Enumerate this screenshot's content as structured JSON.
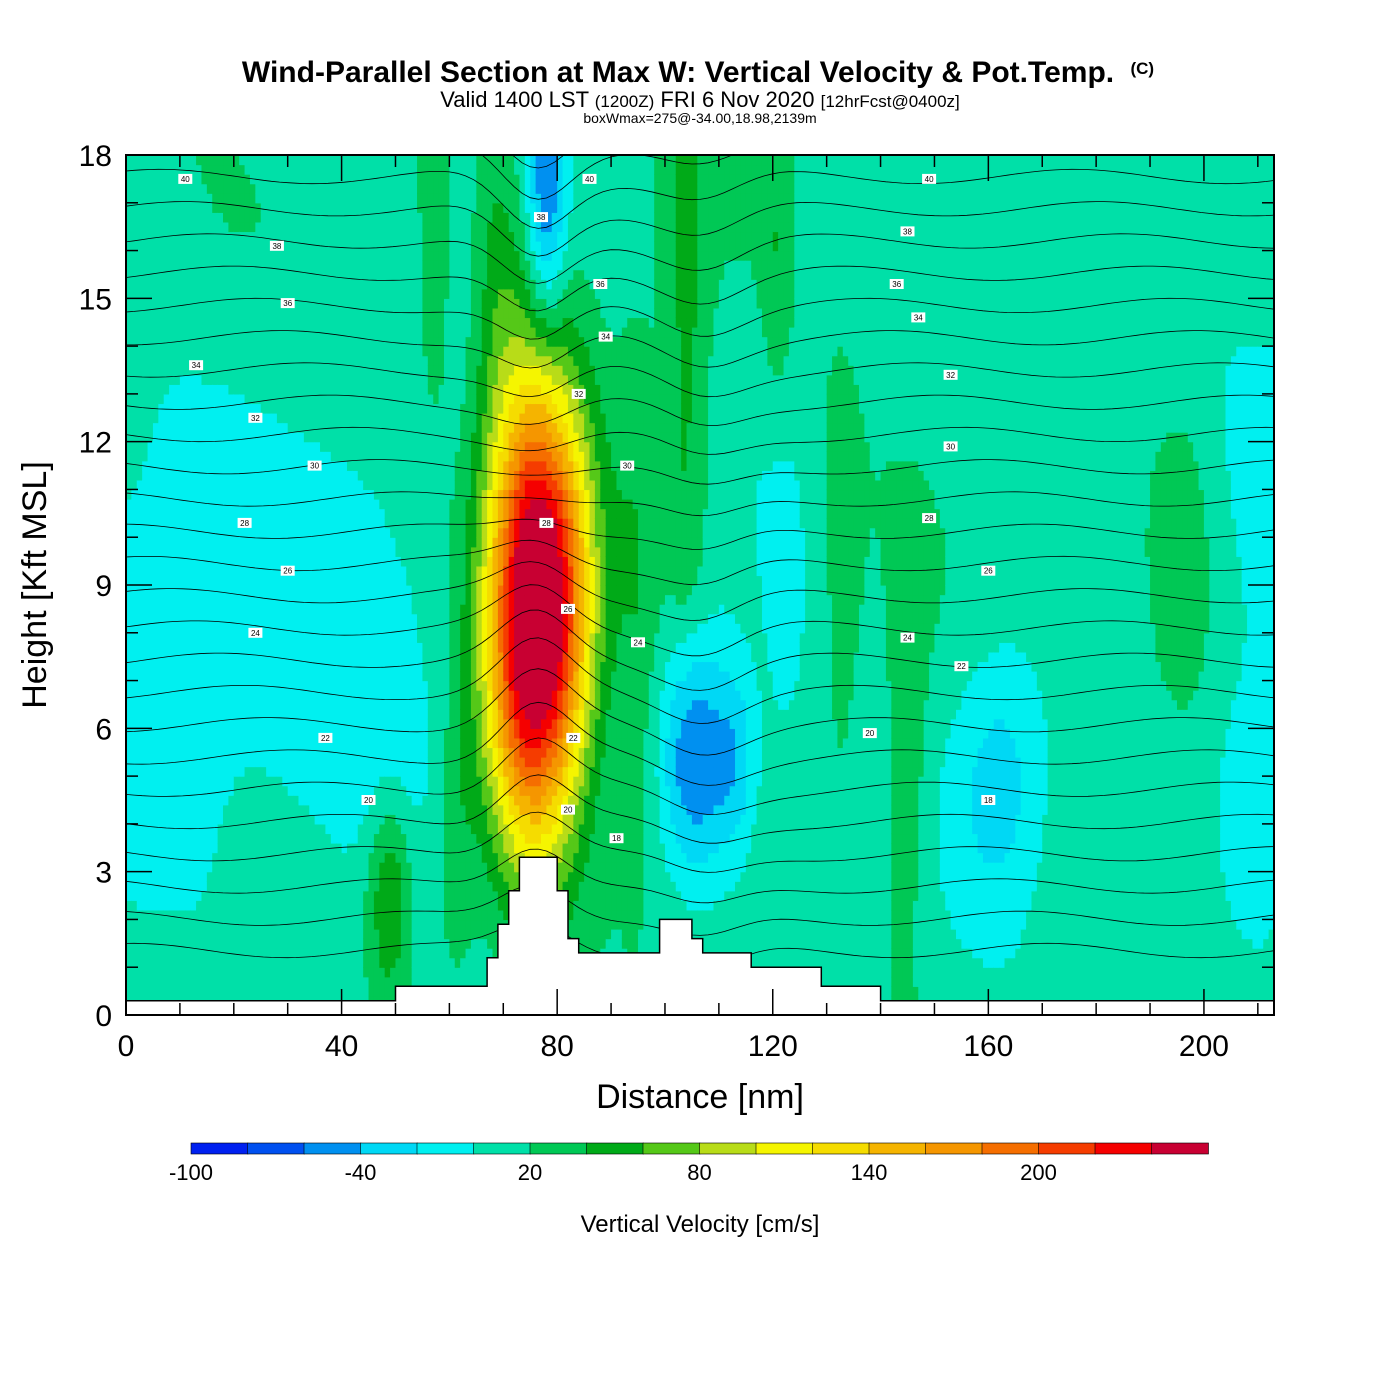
{
  "header": {
    "title": "Wind-Parallel Section at Max W: Vertical Velocity & Pot.Temp.",
    "copyright": "(C)",
    "valid_prefix": "Valid 1400 LST",
    "valid_utc": "(1200Z)",
    "valid_date": "FRI 6 Nov 2020",
    "forecast": "[12hrFcst@0400z]",
    "box_wmax": "boxWmax=275@-34.00,18.98,2139m"
  },
  "chart_data": {
    "type": "heatmap",
    "title": "Wind-Parallel Section at Max W: Vertical Velocity & Pot.Temp.",
    "xlabel": "Distance [nm]",
    "ylabel": "Height [Kft MSL]",
    "xlim": [
      0,
      213
    ],
    "ylim": [
      0,
      18
    ],
    "xticks": [
      0,
      40,
      80,
      120,
      160,
      200
    ],
    "xtick_labels": [
      "0",
      "40",
      "80",
      "120",
      "160",
      "200"
    ],
    "yticks": [
      0,
      3,
      6,
      9,
      12,
      15,
      18
    ],
    "ytick_labels": [
      "0",
      "3",
      "6",
      "9",
      "12",
      "15",
      "18"
    ],
    "colorbar": {
      "title": "Vertical Velocity [cm/s]",
      "levels": [
        -100,
        -80,
        -60,
        -40,
        -20,
        0,
        20,
        40,
        60,
        80,
        100,
        120,
        140,
        160,
        180,
        200,
        220,
        240
      ],
      "colors": [
        "#0020f0",
        "#0050f0",
        "#0090f0",
        "#00d8f5",
        "#00f0f0",
        "#00e0a8",
        "#00c855",
        "#00aa18",
        "#55c818",
        "#b8dc18",
        "#f5f500",
        "#f5dc00",
        "#f5b400",
        "#f59600",
        "#f56e00",
        "#f53c00",
        "#f50000",
        "#c80032"
      ],
      "tick_values": [
        -100,
        -40,
        20,
        80,
        140,
        200
      ],
      "tick_labels": [
        "-100",
        "-40",
        "20",
        "80",
        "140",
        "200"
      ]
    },
    "terrain": [
      [
        0,
        0.3
      ],
      [
        50,
        0.3
      ],
      [
        50,
        0.6
      ],
      [
        67,
        0.6
      ],
      [
        67,
        1.2
      ],
      [
        69,
        1.2
      ],
      [
        69,
        1.9
      ],
      [
        71,
        1.9
      ],
      [
        71,
        2.6
      ],
      [
        73,
        2.6
      ],
      [
        73,
        3.3
      ],
      [
        80,
        3.3
      ],
      [
        80,
        2.6
      ],
      [
        82,
        2.6
      ],
      [
        82,
        1.6
      ],
      [
        84,
        1.6
      ],
      [
        84,
        1.3
      ],
      [
        99,
        1.3
      ],
      [
        99,
        2.0
      ],
      [
        105,
        2.0
      ],
      [
        105,
        1.6
      ],
      [
        107,
        1.6
      ],
      [
        107,
        1.3
      ],
      [
        116,
        1.3
      ],
      [
        116,
        1.0
      ],
      [
        129,
        1.0
      ],
      [
        129,
        0.6
      ],
      [
        140,
        0.6
      ],
      [
        140,
        0.3
      ],
      [
        213,
        0.3
      ]
    ],
    "updrafts": [
      {
        "x": 75,
        "z": 8.0,
        "sx": 6,
        "sz": 3.3,
        "w": 250
      },
      {
        "x": 82,
        "z": 9.0,
        "sx": 5,
        "sz": 2.8,
        "w": 80
      },
      {
        "x": 76,
        "z": 12.0,
        "sx": 4,
        "sz": 2.5,
        "w": 30
      },
      {
        "x": 69,
        "z": 15.5,
        "sx": 3,
        "sz": 3.0,
        "w": 30
      },
      {
        "x": 49,
        "z": 2.5,
        "sx": 3,
        "sz": 1.5,
        "w": 55
      },
      {
        "x": 61,
        "z": 3.5,
        "sx": 3,
        "sz": 2.0,
        "w": 30
      },
      {
        "x": 104,
        "z": 13.0,
        "sx": 3,
        "sz": 6.0,
        "w": 35
      },
      {
        "x": 95,
        "z": 9.0,
        "sx": 3,
        "sz": 4.0,
        "w": 25
      },
      {
        "x": 145,
        "z": 5.0,
        "sx": 3,
        "sz": 3.0,
        "w": 25
      },
      {
        "x": 196,
        "z": 10.0,
        "sx": 5,
        "sz": 2.5,
        "w": 30
      },
      {
        "x": 57,
        "z": 16.0,
        "sx": 2,
        "sz": 2.5,
        "w": 30
      },
      {
        "x": 121,
        "z": 16.0,
        "sx": 2,
        "sz": 2.5,
        "w": 25
      },
      {
        "x": 133,
        "z": 9.0,
        "sx": 2.5,
        "sz": 3.0,
        "w": 20
      }
    ],
    "downdrafts": [
      {
        "x": 78,
        "z": 17.0,
        "sx": 2.5,
        "sz": 2.0,
        "w": -70
      },
      {
        "x": 105,
        "z": 5.5,
        "sx": 4,
        "sz": 1.9,
        "w": -85
      },
      {
        "x": 113,
        "z": 5.3,
        "sx": 3,
        "sz": 1.5,
        "w": -50
      },
      {
        "x": 162,
        "z": 5.0,
        "sx": 6,
        "sz": 2.0,
        "w": -40
      },
      {
        "x": 122,
        "z": 8.0,
        "sx": 3,
        "sz": 5.0,
        "w": -15
      },
      {
        "x": 220,
        "z": 14.0,
        "sx": 20,
        "sz": 6.0,
        "w": -15
      },
      {
        "x": 5,
        "z": 7.0,
        "sx": 25,
        "sz": 4.0,
        "w": -25
      },
      {
        "x": 45,
        "z": 7.5,
        "sx": 12,
        "sz": 3.5,
        "w": -20
      },
      {
        "x": 210,
        "z": 4.5,
        "sx": 6,
        "sz": 2.0,
        "w": -30
      }
    ],
    "theta_levels": [
      14,
      16,
      18,
      20,
      22,
      24,
      26,
      28,
      30,
      32,
      34,
      36,
      38,
      40
    ],
    "contour_labels": [
      {
        "text": "40",
        "x": 11,
        "z": 17.5
      },
      {
        "text": "38",
        "x": 28,
        "z": 16.1
      },
      {
        "text": "36",
        "x": 30,
        "z": 14.9
      },
      {
        "text": "34",
        "x": 13,
        "z": 13.6
      },
      {
        "text": "32",
        "x": 24,
        "z": 12.5
      },
      {
        "text": "30",
        "x": 35,
        "z": 11.5
      },
      {
        "text": "28",
        "x": 22,
        "z": 10.3
      },
      {
        "text": "26",
        "x": 30,
        "z": 9.3
      },
      {
        "text": "24",
        "x": 24,
        "z": 8.0
      },
      {
        "text": "22",
        "x": 37,
        "z": 5.8
      },
      {
        "text": "20",
        "x": 45,
        "z": 4.5
      },
      {
        "text": "40",
        "x": 86,
        "z": 17.5
      },
      {
        "text": "38",
        "x": 77,
        "z": 16.7
      },
      {
        "text": "36",
        "x": 88,
        "z": 15.3
      },
      {
        "text": "34",
        "x": 89,
        "z": 14.2
      },
      {
        "text": "32",
        "x": 84,
        "z": 13.0
      },
      {
        "text": "30",
        "x": 93,
        "z": 11.5
      },
      {
        "text": "28",
        "x": 78,
        "z": 10.3
      },
      {
        "text": "26",
        "x": 82,
        "z": 8.5
      },
      {
        "text": "24",
        "x": 95,
        "z": 7.8
      },
      {
        "text": "22",
        "x": 83,
        "z": 5.8
      },
      {
        "text": "20",
        "x": 82,
        "z": 4.3
      },
      {
        "text": "18",
        "x": 91,
        "z": 3.7
      },
      {
        "text": "40",
        "x": 149,
        "z": 17.5
      },
      {
        "text": "38",
        "x": 145,
        "z": 16.4
      },
      {
        "text": "36",
        "x": 143,
        "z": 15.3
      },
      {
        "text": "34",
        "x": 147,
        "z": 14.6
      },
      {
        "text": "32",
        "x": 153,
        "z": 13.4
      },
      {
        "text": "30",
        "x": 153,
        "z": 11.9
      },
      {
        "text": "28",
        "x": 149,
        "z": 10.4
      },
      {
        "text": "26",
        "x": 160,
        "z": 9.3
      },
      {
        "text": "24",
        "x": 145,
        "z": 7.9
      },
      {
        "text": "22",
        "x": 155,
        "z": 7.3
      },
      {
        "text": "20",
        "x": 138,
        "z": 5.9
      },
      {
        "text": "18",
        "x": 160,
        "z": 4.5
      }
    ]
  }
}
